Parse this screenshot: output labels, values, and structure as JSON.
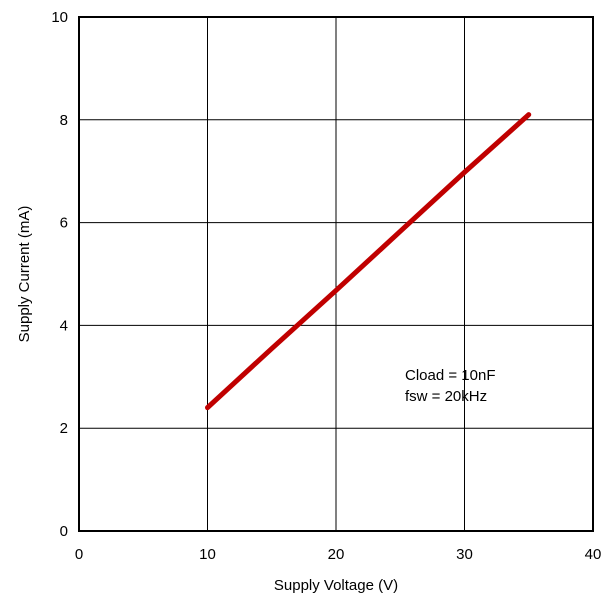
{
  "chart_data": {
    "type": "line",
    "title": "",
    "xlabel": "Supply Voltage (V)",
    "ylabel": "Supply Current (mA)",
    "xlim": [
      0,
      40
    ],
    "ylim": [
      0,
      10
    ],
    "x_ticks": [
      0,
      10,
      20,
      30,
      40
    ],
    "y_ticks": [
      0,
      2,
      4,
      6,
      8,
      10
    ],
    "grid": true,
    "legend": "none",
    "series": [
      {
        "color": "#C00000",
        "x": [
          10,
          15,
          20,
          25,
          30,
          35
        ],
        "y": [
          2.4,
          3.55,
          4.68,
          5.83,
          6.98,
          8.1
        ]
      }
    ],
    "annotations": [
      "Cload = 10nF",
      "fsw = 20kHz"
    ]
  }
}
